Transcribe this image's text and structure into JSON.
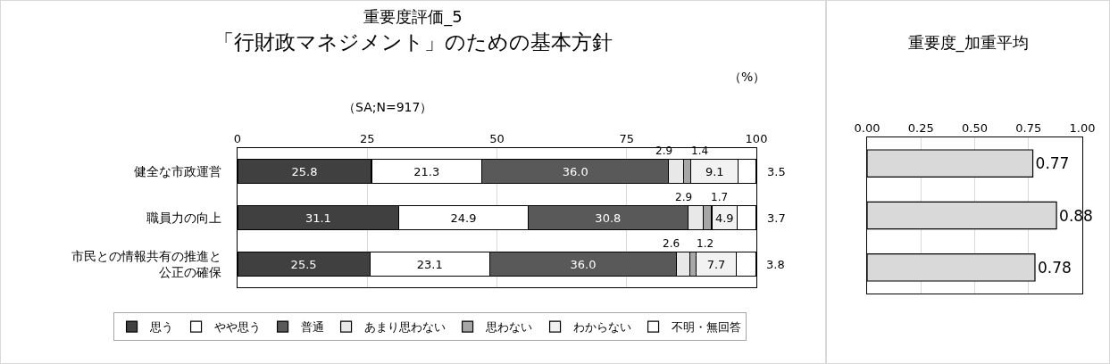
{
  "chart_data": [
    {
      "type": "bar",
      "orientation": "horizontal",
      "stacked": true,
      "title": "重要度評価_5\n「行財政マネジメント」のための基本方針",
      "subtitle": "（SA;N=917）",
      "annotations": [
        "（%）"
      ],
      "categories": [
        "健全な市政運営",
        "職員力の向上",
        "市民との情報共有の推進と公正の確保"
      ],
      "series": [
        {
          "name": "思う",
          "color": "#404040",
          "values": [
            25.8,
            31.1,
            25.5
          ],
          "value_labels": [
            "25.8",
            "31.1",
            "25.5"
          ]
        },
        {
          "name": "やや思う",
          "color": "#ffffff",
          "values": [
            21.3,
            24.9,
            23.1
          ],
          "value_labels": [
            "21.3",
            "24.9",
            "23.1"
          ]
        },
        {
          "name": "普通",
          "color": "#595959",
          "values": [
            36.0,
            30.8,
            36.0
          ],
          "value_labels": [
            "36.0",
            "30.8",
            "36.0"
          ]
        },
        {
          "name": "あまり思わない",
          "color": "#e8e8e8",
          "values": [
            2.9,
            2.9,
            2.6
          ],
          "value_labels": [
            "2.9",
            "2.9",
            "2.6"
          ]
        },
        {
          "name": "思わない",
          "color": "#a6a6a6",
          "values": [
            1.4,
            1.7,
            1.2
          ],
          "value_labels": [
            "1.4",
            "1.7",
            "1.2"
          ]
        },
        {
          "name": "わからない",
          "color": "#f2f2f2",
          "values": [
            9.1,
            4.9,
            7.7
          ],
          "value_labels": [
            "9.1",
            "4.9",
            "7.7"
          ]
        },
        {
          "name": "不明・無回答",
          "color": "#ffffff",
          "values": [
            3.5,
            3.7,
            3.8
          ],
          "value_labels": [
            "3.5",
            "3.7",
            "3.8"
          ]
        }
      ],
      "xlim": [
        0,
        100
      ],
      "xticks": [
        0,
        25,
        50,
        75,
        100
      ],
      "grid": "x",
      "legend": "bottom"
    },
    {
      "type": "bar",
      "orientation": "horizontal",
      "title": "重要度_加重平均",
      "categories": [
        "健全な市政運営",
        "職員力の向上",
        "市民との情報共有の推進と公正の確保"
      ],
      "values": [
        0.77,
        0.88,
        0.78
      ],
      "color": "#d9d9d9",
      "data_labels": true,
      "xlim": [
        0,
        1
      ],
      "xticks": [
        {
          "value": 0,
          "label": "0.00"
        },
        {
          "value": 0.25,
          "label": "0.25"
        },
        {
          "value": 0.5,
          "label": "0.50"
        },
        {
          "value": 0.75,
          "label": "0.75"
        },
        {
          "value": 1,
          "label": "1.00"
        }
      ],
      "grid": "x",
      "tick_labels": "x"
    }
  ]
}
